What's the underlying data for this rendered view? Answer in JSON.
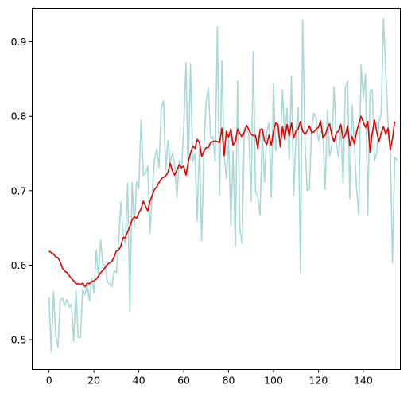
{
  "chart_data": {
    "type": "line",
    "title": "",
    "xlabel": "",
    "ylabel": "",
    "xlim": [
      -7.5,
      156.5
    ],
    "ylim": [
      0.46,
      0.945
    ],
    "grid": false,
    "legend": "none",
    "x_ticks": [
      0,
      20,
      40,
      60,
      80,
      100,
      120,
      140
    ],
    "y_ticks": [
      0.5,
      0.6,
      0.7,
      0.8,
      0.9
    ],
    "series": [
      {
        "color": "#a8d8d8",
        "values": [
          0.557,
          0.483,
          0.565,
          0.505,
          0.49,
          0.553,
          0.556,
          0.545,
          0.554,
          0.544,
          0.548,
          0.498,
          0.566,
          0.503,
          0.503,
          0.568,
          0.56,
          0.575,
          0.552,
          0.583,
          0.563,
          0.62,
          0.585,
          0.634,
          0.601,
          0.6,
          0.577,
          0.575,
          0.571,
          0.592,
          0.59,
          0.63,
          0.685,
          0.642,
          0.629,
          0.71,
          0.538,
          0.711,
          0.65,
          0.712,
          0.703,
          0.795,
          0.721,
          0.723,
          0.733,
          0.643,
          0.699,
          0.742,
          0.756,
          0.731,
          0.811,
          0.821,
          0.728,
          0.768,
          0.738,
          0.751,
          0.733,
          0.691,
          0.741,
          0.728,
          0.783,
          0.872,
          0.718,
          0.871,
          0.739,
          0.75,
          0.66,
          0.761,
          0.633,
          0.757,
          0.82,
          0.838,
          0.77,
          0.773,
          0.74,
          0.92,
          0.694,
          0.875,
          0.749,
          0.716,
          0.77,
          0.654,
          0.753,
          0.625,
          0.847,
          0.649,
          0.629,
          0.784,
          0.779,
          0.779,
          0.686,
          0.887,
          0.699,
          0.692,
          0.667,
          0.779,
          0.712,
          0.778,
          0.791,
          0.691,
          0.844,
          0.754,
          0.784,
          0.76,
          0.835,
          0.767,
          0.811,
          0.742,
          0.854,
          0.693,
          0.774,
          0.812,
          0.59,
          0.929,
          0.768,
          0.7,
          0.703,
          0.786,
          0.804,
          0.798,
          0.767,
          0.78,
          0.779,
          0.702,
          0.808,
          0.747,
          0.76,
          0.839,
          0.766,
          0.744,
          0.788,
          0.71,
          0.838,
          0.847,
          0.689,
          0.815,
          0.765,
          0.703,
          0.667,
          0.87,
          0.825,
          0.857,
          0.667,
          0.833,
          0.836,
          0.74,
          0.75,
          0.792,
          0.805,
          0.931,
          0.861,
          0.793,
          0.762,
          0.603,
          0.745,
          0.741
        ]
      },
      {
        "color": "#e60000",
        "values": [
          0.619,
          0.617,
          0.615,
          0.611,
          0.61,
          0.604,
          0.596,
          0.592,
          0.59,
          0.586,
          0.582,
          0.579,
          0.575,
          0.575,
          0.574,
          0.576,
          0.571,
          0.576,
          0.575,
          0.578,
          0.579,
          0.581,
          0.585,
          0.59,
          0.593,
          0.597,
          0.601,
          0.603,
          0.605,
          0.611,
          0.619,
          0.62,
          0.626,
          0.637,
          0.637,
          0.645,
          0.652,
          0.661,
          0.665,
          0.663,
          0.67,
          0.676,
          0.686,
          0.679,
          0.673,
          0.686,
          0.694,
          0.702,
          0.705,
          0.711,
          0.716,
          0.718,
          0.72,
          0.725,
          0.737,
          0.726,
          0.721,
          0.728,
          0.735,
          0.731,
          0.733,
          0.721,
          0.738,
          0.75,
          0.76,
          0.757,
          0.769,
          0.765,
          0.746,
          0.753,
          0.758,
          0.758,
          0.765,
          0.766,
          0.767,
          0.766,
          0.765,
          0.784,
          0.747,
          0.78,
          0.772,
          0.783,
          0.761,
          0.766,
          0.783,
          0.777,
          0.772,
          0.779,
          0.788,
          0.782,
          0.776,
          0.774,
          0.774,
          0.757,
          0.782,
          0.783,
          0.767,
          0.762,
          0.775,
          0.761,
          0.78,
          0.791,
          0.789,
          0.759,
          0.786,
          0.769,
          0.789,
          0.774,
          0.791,
          0.771,
          0.78,
          0.783,
          0.793,
          0.78,
          0.776,
          0.78,
          0.787,
          0.778,
          0.779,
          0.783,
          0.785,
          0.794,
          0.771,
          0.775,
          0.784,
          0.79,
          0.774,
          0.766,
          0.778,
          0.78,
          0.789,
          0.77,
          0.775,
          0.787,
          0.76,
          0.773,
          0.763,
          0.779,
          0.79,
          0.8,
          0.792,
          0.785,
          0.793,
          0.752,
          0.778,
          0.795,
          0.779,
          0.766,
          0.778,
          0.786,
          0.776,
          0.784,
          0.755,
          0.77,
          0.793
        ]
      }
    ]
  }
}
